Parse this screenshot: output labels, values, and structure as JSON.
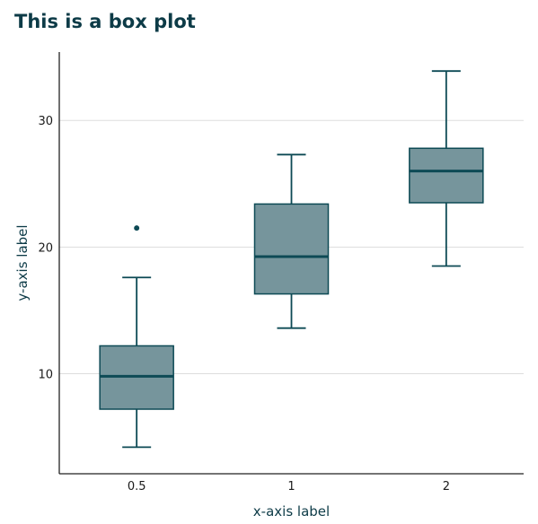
{
  "chart_data": {
    "type": "box",
    "title": "This is a box plot",
    "xlabel": "x-axis label",
    "ylabel": "y-axis label",
    "categories": [
      "0.5",
      "1",
      "2"
    ],
    "boxes": [
      {
        "category": "0.5",
        "whisker_low": 4.2,
        "q1": 7.2,
        "median": 9.8,
        "q3": 12.2,
        "whisker_high": 17.6,
        "outliers": [
          21.5
        ]
      },
      {
        "category": "1",
        "whisker_low": 13.6,
        "q1": 16.3,
        "median": 19.25,
        "q3": 23.4,
        "whisker_high": 27.3,
        "outliers": []
      },
      {
        "category": "2",
        "whisker_low": 18.5,
        "q1": 23.5,
        "median": 26.0,
        "q3": 27.8,
        "whisker_high": 33.9,
        "outliers": []
      }
    ],
    "yticks": [
      10,
      20,
      30
    ],
    "ylim": [
      2.1,
      35.4
    ],
    "grid": "horizontal",
    "colors": {
      "box_fill": "#76959c",
      "box_edge": "#0d4a55",
      "median": "#0d4a55",
      "grid": "#dddddd",
      "axis": "#222222"
    }
  }
}
